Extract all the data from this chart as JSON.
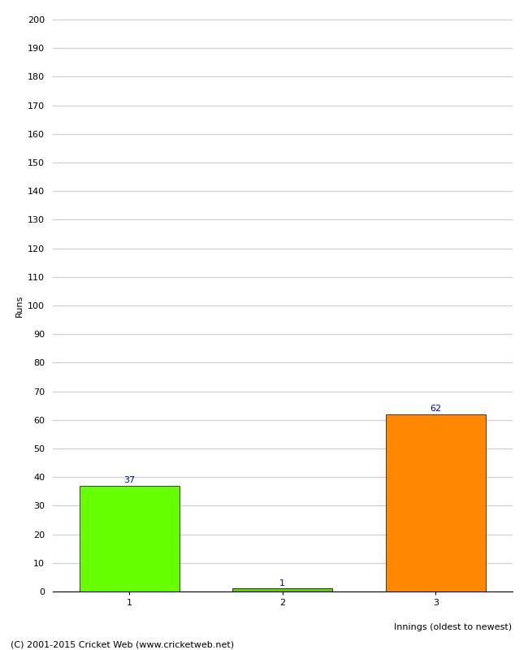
{
  "categories": [
    "1",
    "2",
    "3"
  ],
  "values": [
    37,
    1,
    62
  ],
  "bar_colors": [
    "#66ff00",
    "#66cc00",
    "#ff8800"
  ],
  "xlabel": "Innings (oldest to newest)",
  "ylabel": "Runs",
  "ylim": [
    0,
    200
  ],
  "yticks": [
    0,
    10,
    20,
    30,
    40,
    50,
    60,
    70,
    80,
    90,
    100,
    110,
    120,
    130,
    140,
    150,
    160,
    170,
    180,
    190,
    200
  ],
  "value_label_color": "#0000cc",
  "value_label_fontsize": 8,
  "axis_label_fontsize": 8,
  "tick_fontsize": 8,
  "footer_text": "(C) 2001-2015 Cricket Web (www.cricketweb.net)",
  "footer_fontsize": 8,
  "background_color": "#ffffff",
  "grid_color": "#cccccc",
  "bar_width": 0.65
}
